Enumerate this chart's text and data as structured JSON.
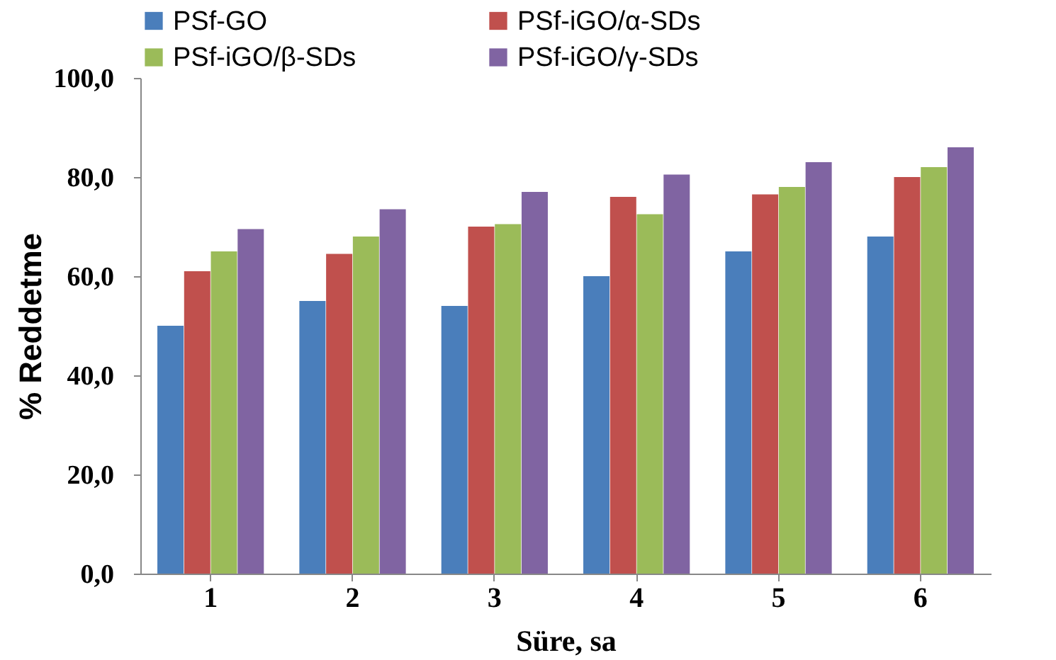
{
  "chart_data": {
    "type": "bar",
    "xlabel": "Süre, sa",
    "ylabel": "% Reddetme",
    "categories": [
      "1",
      "2",
      "3",
      "4",
      "5",
      "6"
    ],
    "series": [
      {
        "name": "PSf-GO",
        "color": "#4a7ebb",
        "values": [
          50,
          55,
          54,
          60,
          65,
          68
        ]
      },
      {
        "name": "PSf-iGO/α-SDs",
        "color": "#c0504d",
        "values": [
          61,
          64.5,
          70,
          76,
          76.5,
          80
        ]
      },
      {
        "name": "PSf-iGO/β-SDs",
        "color": "#9bbb59",
        "values": [
          65,
          68,
          70.5,
          72.5,
          78,
          82
        ]
      },
      {
        "name": "PSf-iGO/γ-SDs",
        "color": "#8064a2",
        "values": [
          69.5,
          73.5,
          77,
          80.5,
          83,
          86
        ]
      }
    ],
    "ylim": [
      0,
      100
    ],
    "yticks": [
      {
        "value": 0,
        "label": "0,0"
      },
      {
        "value": 20,
        "label": "20,0"
      },
      {
        "value": 40,
        "label": "40,0"
      },
      {
        "value": 60,
        "label": "60,0"
      },
      {
        "value": 80,
        "label": "80,0"
      },
      {
        "value": 100,
        "label": "100,0"
      }
    ],
    "grid": false,
    "legend": "top"
  }
}
